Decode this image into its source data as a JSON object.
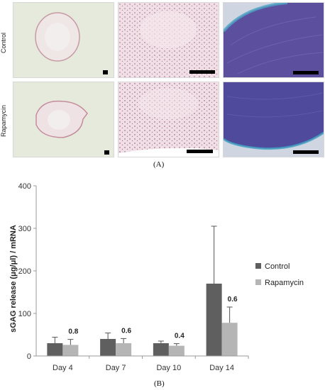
{
  "panel_a": {
    "rows": [
      "Control",
      "Rapamycin"
    ],
    "caption": "(A)"
  },
  "panel_b": {
    "caption": "(B)"
  },
  "colors": {
    "control": "#5f5f5f",
    "rapamycin": "#b5b5b5",
    "he_background": "#e9ece3",
    "safranin_blue": "#5b4f9e"
  },
  "chart_data": {
    "type": "bar",
    "categories": [
      "Day 4",
      "Day 7",
      "Day 10",
      "Day 14"
    ],
    "series": [
      {
        "name": "Control",
        "values": [
          30,
          40,
          30,
          170
        ],
        "errors": [
          14,
          14,
          5,
          135
        ]
      },
      {
        "name": "Rapamycin",
        "values": [
          26,
          30,
          24,
          78
        ],
        "errors": [
          13,
          11,
          5,
          37
        ]
      }
    ],
    "annotations": [
      "0.8",
      "0.6",
      "0.4",
      "0.6"
    ],
    "ylabel": "sGAG release (μg/μl) / mRNA",
    "xlabel": "",
    "ylim": [
      0,
      400
    ],
    "yticks": [
      "0",
      "100",
      "200",
      "300",
      "400"
    ],
    "legend_position": "right",
    "grid": false
  }
}
